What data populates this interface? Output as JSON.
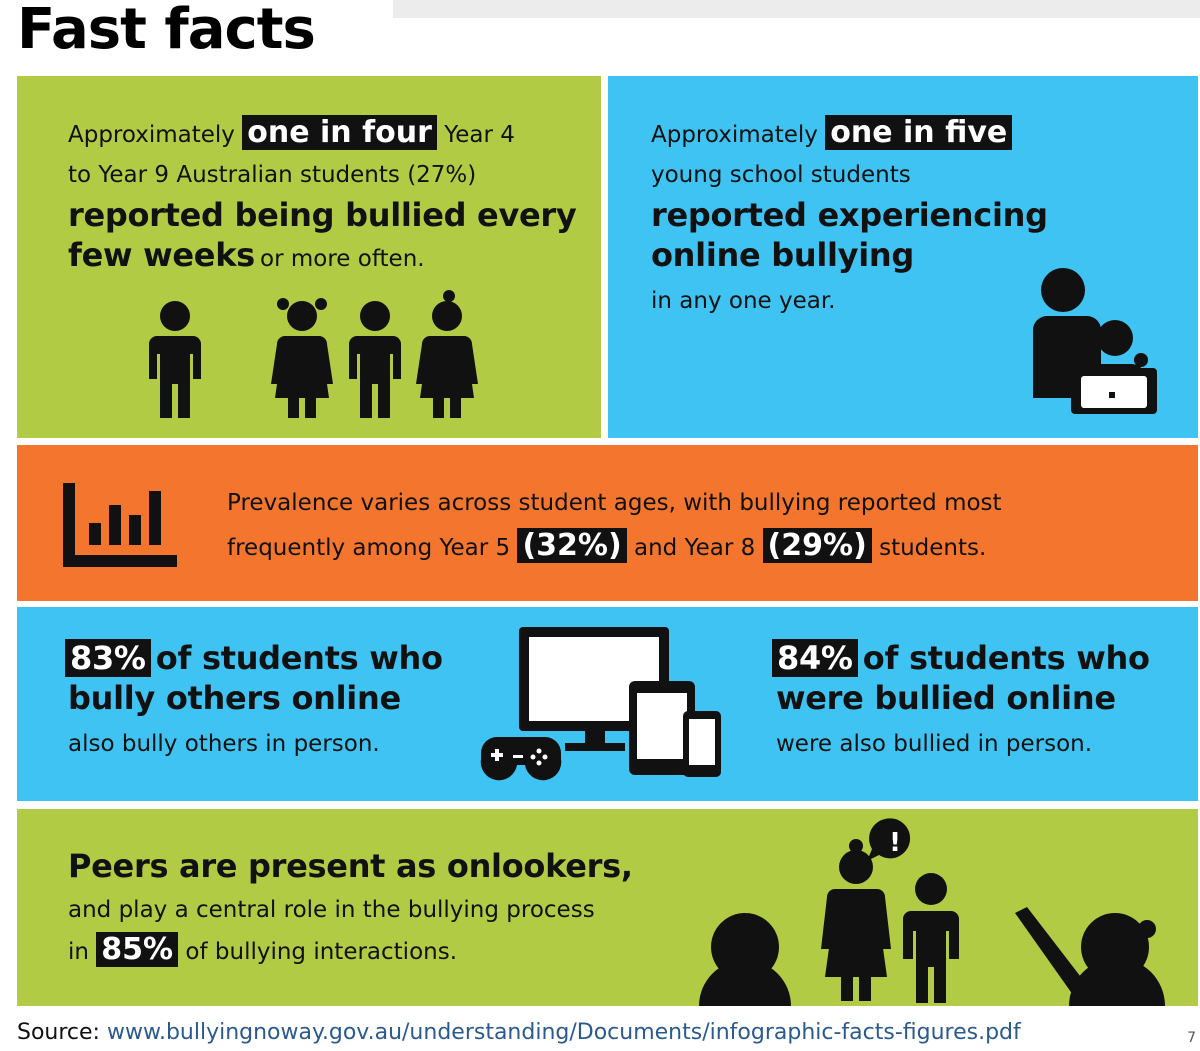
{
  "title": "Fast facts",
  "fact1": {
    "pre": "Approximately",
    "highlight": "one in four",
    "post": "Year 4",
    "line2": "to Year 9 Australian students (27%)",
    "bold1": "reported being bullied every",
    "bold2": "few weeks",
    "tail": "or more often."
  },
  "fact2": {
    "pre": "Approximately",
    "highlight": "one in five",
    "line2": "young school students",
    "bold1": "reported experiencing",
    "bold2": "online bullying",
    "tail": "in any one year."
  },
  "fact3": {
    "line1": "Prevalence varies across student ages, with bullying reported most",
    "line2_pre": "frequently among Year 5",
    "year5_pct": "(32%)",
    "line2_mid": "and Year 8",
    "year8_pct": "(29%)",
    "line2_post": "students."
  },
  "fact4": {
    "pct": "83%",
    "bold1": "of students who",
    "bold2": "bully others online",
    "tail": "also bully others in person."
  },
  "fact5": {
    "pct": "84%",
    "bold1": "of students who",
    "bold2": "were bullied online",
    "tail": "were also bullied in person."
  },
  "fact6": {
    "bold1": "Peers are present as onlookers,",
    "line2": "and play a central role in the bullying process",
    "line3_pre": "in",
    "pct": "85%",
    "line3_post": "of bullying interactions.",
    "speech_mark": "!"
  },
  "source": {
    "label": "Source:",
    "url": "www.bullyingnoway.gov.au/understanding/Documents/infographic-facts-figures.pdf"
  },
  "page_number": "7",
  "colors": {
    "green": "#b1cb44",
    "blue": "#3ec3f3",
    "orange": "#f3752e",
    "highlight_bg": "#111111",
    "link": "#2a5a8f"
  }
}
